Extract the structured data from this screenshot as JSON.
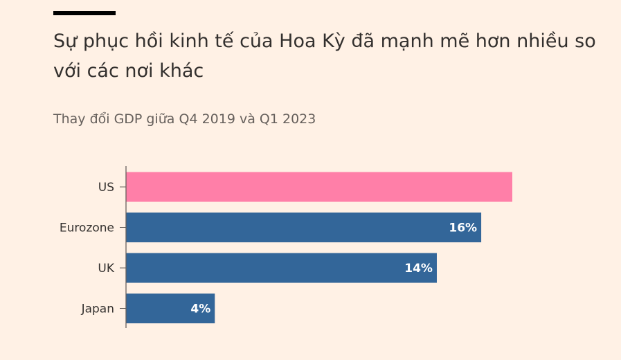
{
  "header": {
    "title": "Sự phục hồi kinh tế của Hoa Kỳ đã mạnh mẽ hơn nhiều so với các nơi khác",
    "subtitle": "Thay đổi GDP giữa Q4 2019 và Q1 2023"
  },
  "colors": {
    "highlight": "#ff7fa8",
    "bar": "#336699",
    "axis": "#66605c",
    "background": "#fff1e5"
  },
  "chart_data": {
    "type": "bar",
    "orientation": "horizontal",
    "categories": [
      "US",
      "Eurozone",
      "UK",
      "Japan"
    ],
    "values": [
      17.4,
      16,
      14,
      4
    ],
    "data_labels": [
      "",
      "16%",
      "14%",
      "4%"
    ],
    "highlight_index": 0,
    "title": "Sự phục hồi kinh tế của Hoa Kỳ đã mạnh mẽ hơn nhiều so với các nơi khác",
    "subtitle": "Thay đổi GDP giữa Q4 2019 và Q1 2023",
    "xlabel": "",
    "ylabel": "",
    "xlim": [
      0,
      17.4
    ],
    "grid": false
  }
}
